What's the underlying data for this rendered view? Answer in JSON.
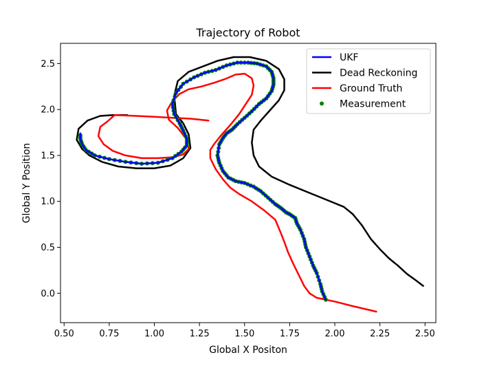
{
  "chart_data": {
    "type": "line",
    "title": "Trajectory of Robot",
    "xlabel": "Global X Positon",
    "ylabel": "Global Y Position",
    "xlim": [
      0.48,
      2.56
    ],
    "ylim": [
      -0.32,
      2.72
    ],
    "xticks": [
      0.5,
      0.75,
      1.0,
      1.25,
      1.5,
      1.75,
      2.0,
      2.25,
      2.5
    ],
    "xtick_labels": [
      "0.50",
      "0.75",
      "1.00",
      "1.25",
      "1.50",
      "1.75",
      "2.00",
      "2.25",
      "2.50"
    ],
    "yticks": [
      0.0,
      0.5,
      1.0,
      1.5,
      2.0,
      2.5
    ],
    "ytick_labels": [
      "0.0",
      "0.5",
      "1.0",
      "1.5",
      "2.0",
      "2.5"
    ],
    "grid": false,
    "legend_position": "top-right",
    "series": [
      {
        "name": "UKF",
        "kind": "line",
        "color": "#0000ff",
        "x": [
          1.95,
          1.93,
          1.92,
          1.9,
          1.88,
          1.86,
          1.84,
          1.83,
          1.81,
          1.79,
          1.78,
          1.75,
          1.73,
          1.7,
          1.67,
          1.63,
          1.59,
          1.55,
          1.5,
          1.45,
          1.41,
          1.38,
          1.36,
          1.35,
          1.36,
          1.38,
          1.4,
          1.43,
          1.46,
          1.5,
          1.54,
          1.58,
          1.62,
          1.65,
          1.66,
          1.66,
          1.65,
          1.62,
          1.57,
          1.52,
          1.46,
          1.4,
          1.34,
          1.28,
          1.22,
          1.16,
          1.12,
          1.1,
          1.11,
          1.14,
          1.16,
          1.18,
          1.18,
          1.15,
          1.1,
          1.02,
          0.93,
          0.84,
          0.75,
          0.67,
          0.62,
          0.6,
          0.59,
          0.59
        ],
        "y": [
          -0.07,
          0.02,
          0.1,
          0.22,
          0.3,
          0.4,
          0.5,
          0.59,
          0.69,
          0.76,
          0.82,
          0.86,
          0.88,
          0.93,
          0.97,
          1.04,
          1.11,
          1.16,
          1.2,
          1.22,
          1.26,
          1.33,
          1.42,
          1.5,
          1.62,
          1.69,
          1.74,
          1.78,
          1.84,
          1.91,
          1.98,
          2.06,
          2.12,
          2.2,
          2.27,
          2.34,
          2.41,
          2.47,
          2.5,
          2.51,
          2.51,
          2.48,
          2.43,
          2.4,
          2.35,
          2.28,
          2.18,
          2.06,
          1.95,
          1.85,
          1.77,
          1.68,
          1.61,
          1.54,
          1.47,
          1.42,
          1.41,
          1.43,
          1.46,
          1.5,
          1.56,
          1.62,
          1.68,
          1.74
        ]
      },
      {
        "name": "Dead Reckoning",
        "kind": "line",
        "color": "#000000",
        "x": [
          2.49,
          2.45,
          2.4,
          2.35,
          2.3,
          2.25,
          2.2,
          2.15,
          2.1,
          2.05,
          1.95,
          1.85,
          1.75,
          1.65,
          1.58,
          1.55,
          1.54,
          1.55,
          1.59,
          1.64,
          1.69,
          1.72,
          1.72,
          1.69,
          1.62,
          1.53,
          1.44,
          1.35,
          1.27,
          1.19,
          1.13,
          1.11,
          1.12,
          1.16,
          1.19,
          1.2,
          1.16,
          1.09,
          1.0,
          0.9,
          0.8,
          0.71,
          0.64,
          0.6,
          0.57,
          0.58,
          0.63,
          0.7,
          0.77,
          0.85
        ],
        "y": [
          0.08,
          0.14,
          0.21,
          0.3,
          0.38,
          0.48,
          0.59,
          0.74,
          0.86,
          0.94,
          1.02,
          1.1,
          1.18,
          1.27,
          1.38,
          1.5,
          1.64,
          1.78,
          1.88,
          1.99,
          2.1,
          2.21,
          2.33,
          2.44,
          2.53,
          2.57,
          2.57,
          2.53,
          2.47,
          2.41,
          2.31,
          2.15,
          1.95,
          1.85,
          1.73,
          1.58,
          1.47,
          1.39,
          1.36,
          1.36,
          1.38,
          1.43,
          1.5,
          1.57,
          1.67,
          1.79,
          1.88,
          1.93,
          1.94,
          1.94
        ]
      },
      {
        "name": "Ground Truth",
        "kind": "line",
        "color": "#ff0000",
        "x": [
          2.23,
          2.1,
          2.0,
          1.9,
          1.86,
          1.83,
          1.8,
          1.77,
          1.74,
          1.72,
          1.7,
          1.67,
          1.61,
          1.54,
          1.47,
          1.42,
          1.38,
          1.34,
          1.31,
          1.31,
          1.33,
          1.37,
          1.42,
          1.47,
          1.51,
          1.54,
          1.55,
          1.54,
          1.5,
          1.45,
          1.39,
          1.33,
          1.26,
          1.19,
          1.14,
          1.1,
          1.07,
          1.08,
          1.13,
          1.18,
          1.19,
          1.16,
          1.1,
          1.02,
          0.93,
          0.84,
          0.77,
          0.72,
          0.69,
          0.7,
          0.74,
          0.78,
          0.9,
          1.0,
          1.1,
          1.2,
          1.3
        ],
        "y": [
          -0.2,
          -0.14,
          -0.09,
          -0.05,
          0.0,
          0.08,
          0.2,
          0.32,
          0.45,
          0.56,
          0.66,
          0.8,
          0.9,
          1.0,
          1.08,
          1.15,
          1.24,
          1.35,
          1.47,
          1.56,
          1.62,
          1.72,
          1.83,
          1.95,
          2.07,
          2.16,
          2.26,
          2.34,
          2.39,
          2.38,
          2.33,
          2.29,
          2.25,
          2.22,
          2.17,
          2.09,
          1.99,
          1.89,
          1.8,
          1.67,
          1.57,
          1.51,
          1.48,
          1.47,
          1.47,
          1.5,
          1.55,
          1.62,
          1.71,
          1.81,
          1.87,
          1.94,
          1.93,
          1.92,
          1.91,
          1.9,
          1.88
        ]
      },
      {
        "name": "Measurement",
        "kind": "scatter",
        "color": "#008000",
        "source": "UKF"
      }
    ]
  }
}
